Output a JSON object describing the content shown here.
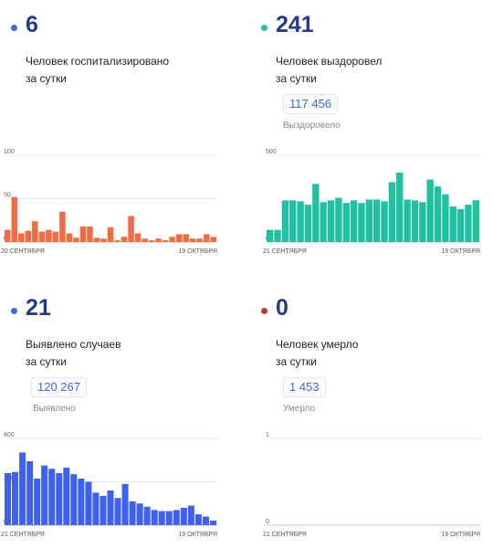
{
  "panels": [
    {
      "value": "6",
      "line1": "Человек госпитализировано",
      "line2": "за сутки",
      "total": "",
      "total_label": "",
      "dot_color": "#3f6ad8",
      "bar_color": "#f26b43"
    },
    {
      "value": "241",
      "line1": "Человек выздоровел",
      "line2": "за сутки",
      "total": "117 456",
      "total_label": "Выздоровело",
      "dot_color": "#1fc1a0",
      "bar_color": "#1fc1a0"
    },
    {
      "value": "21",
      "line1": "Выявлено случаев",
      "line2": "за сутки",
      "total": "120 267",
      "total_label": "Выявлено",
      "dot_color": "#3f6ad8",
      "bar_color": "#3e61f0"
    },
    {
      "value": "0",
      "line1": "Человек умерло",
      "line2": "за сутки",
      "total": "1 453",
      "total_label": "Умерло",
      "dot_color": "#c0392b",
      "bar_color": "#c0392b"
    }
  ],
  "chart_data": [
    {
      "type": "bar",
      "title": "",
      "x_start_label": "20 СЕНТЯБРЯ",
      "x_end_label": "19 ОКТЯБРЯ",
      "yticks": [
        "100",
        "50",
        "0"
      ],
      "ylim": [
        0,
        100
      ],
      "values": [
        14,
        52,
        10,
        13,
        24,
        12,
        14,
        12,
        35,
        10,
        5,
        18,
        18,
        5,
        4,
        17,
        2,
        6,
        30,
        10,
        4,
        2,
        4,
        2,
        6,
        9,
        9,
        4,
        4,
        9,
        6
      ]
    },
    {
      "type": "bar",
      "title": "",
      "x_start_label": "21 СЕНТЯБРЯ",
      "x_end_label": "19 ОКТЯБРЯ",
      "yticks": [
        "500",
        "0"
      ],
      "ylim": [
        0,
        500
      ],
      "values": [
        70,
        70,
        240,
        240,
        235,
        215,
        335,
        230,
        240,
        255,
        225,
        240,
        225,
        245,
        245,
        235,
        345,
        400,
        245,
        240,
        230,
        360,
        320,
        275,
        205,
        190,
        215,
        241
      ]
    },
    {
      "type": "bar",
      "title": "",
      "x_start_label": "21 СЕНТЯБРЯ",
      "x_end_label": "19 ОКТЯБРЯ",
      "yticks": [
        "400",
        "200",
        "0"
      ],
      "ylim": [
        0,
        400
      ],
      "values": [
        240,
        245,
        335,
        295,
        215,
        275,
        260,
        240,
        265,
        235,
        215,
        200,
        150,
        135,
        160,
        125,
        190,
        110,
        100,
        85,
        70,
        65,
        65,
        70,
        80,
        90,
        50,
        40,
        21
      ]
    },
    {
      "type": "bar",
      "title": "",
      "x_start_label": "21 СЕНТЯБРЯ",
      "x_end_label": "19 ОКТЯБРЯ",
      "yticks": [
        "1",
        "0"
      ],
      "ylim": [
        0,
        1
      ],
      "values": []
    }
  ]
}
